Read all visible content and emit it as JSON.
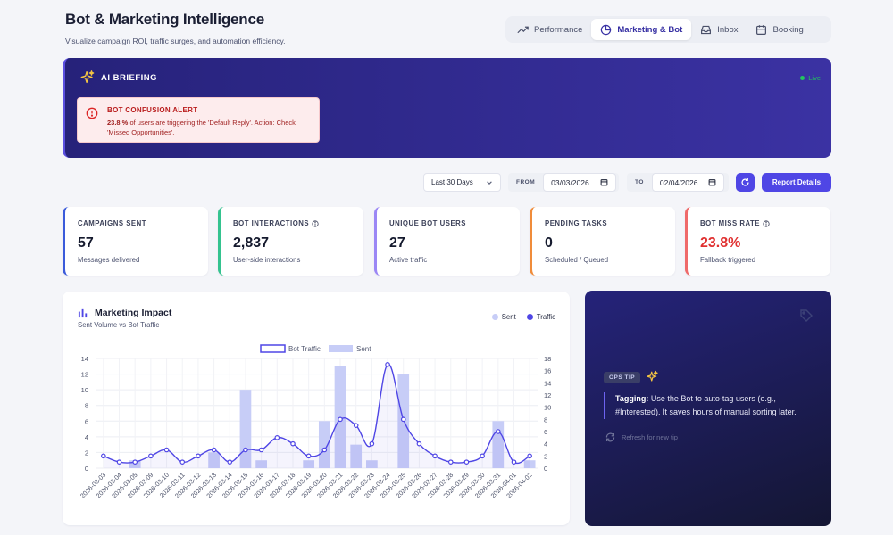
{
  "header": {
    "title": "Bot & Marketing Intelligence",
    "subtitle": "Visualize campaign ROI, traffic surges, and automation efficiency."
  },
  "tabs": [
    {
      "label": "Performance",
      "icon": "trend-icon",
      "active": false
    },
    {
      "label": "Marketing & Bot",
      "icon": "pie-icon",
      "active": true
    },
    {
      "label": "Inbox",
      "icon": "inbox-icon",
      "active": false
    },
    {
      "label": "Booking",
      "icon": "calendar-icon",
      "active": false
    }
  ],
  "briefing": {
    "title": "AI BRIEFING",
    "live": "Live",
    "alert_title": "BOT CONFUSION ALERT",
    "alert_percent": "23.8 %",
    "alert_body": " of users are triggering the 'Default Reply'. Action: Check 'Missed Opportunities'."
  },
  "filters": {
    "range": "Last 30 Days",
    "from_label": "FROM",
    "from_value": "03/03/2026",
    "to_label": "TO",
    "to_value": "02/04/2026",
    "report_label": "Report Details"
  },
  "kpis": [
    {
      "label": "CAMPAIGNS SENT",
      "value": "57",
      "sub": "Messages delivered",
      "color": "#3b5bdb",
      "info": false,
      "value_color": "#151a2e"
    },
    {
      "label": "BOT INTERACTIONS",
      "value": "2,837",
      "sub": "User-side interactions",
      "color": "#34c38f",
      "info": true,
      "value_color": "#151a2e"
    },
    {
      "label": "UNIQUE BOT USERS",
      "value": "27",
      "sub": "Active traffic",
      "color": "#9b87f5",
      "info": false,
      "value_color": "#151a2e"
    },
    {
      "label": "PENDING TASKS",
      "value": "0",
      "sub": "Scheduled / Queued",
      "color": "#f08c3a",
      "info": false,
      "value_color": "#151a2e"
    },
    {
      "label": "BOT MISS RATE",
      "value": "23.8%",
      "sub": "Fallback triggered",
      "color": "#ef6a6a",
      "info": true,
      "value_color": "#e03131"
    }
  ],
  "chart_card": {
    "title": "Marketing Impact",
    "subtitle": "Sent Volume vs Bot Traffic",
    "legend_sent": "Sent",
    "legend_traffic": "Traffic"
  },
  "chart_data": {
    "type": "bar",
    "legend": [
      "Bot Traffic",
      "Sent"
    ],
    "categories": [
      "2026-03-03",
      "2026-03-04",
      "2026-03-05",
      "2026-03-09",
      "2026-03-10",
      "2026-03-11",
      "2026-03-12",
      "2026-03-13",
      "2026-03-14",
      "2026-03-15",
      "2026-03-16",
      "2026-03-17",
      "2026-03-18",
      "2026-03-19",
      "2026-03-20",
      "2026-03-21",
      "2026-03-22",
      "2026-03-23",
      "2026-03-24",
      "2026-03-25",
      "2026-03-26",
      "2026-03-27",
      "2026-03-28",
      "2026-03-29",
      "2026-03-30",
      "2026-03-31",
      "2026-04-01",
      "2026-04-02"
    ],
    "series": [
      {
        "name": "Sent",
        "type": "bar",
        "axis": "left",
        "values": [
          0,
          0,
          1,
          0,
          0,
          0,
          0,
          2,
          0,
          10,
          1,
          0,
          0,
          1,
          6,
          13,
          3,
          1,
          0,
          12,
          0,
          0,
          0,
          0,
          0,
          6,
          0,
          1
        ]
      },
      {
        "name": "Bot Traffic",
        "type": "line",
        "axis": "right",
        "values": [
          2,
          1,
          1,
          2,
          3,
          1,
          2,
          3,
          1,
          3,
          3,
          5,
          4,
          2,
          3,
          8,
          7,
          4,
          17,
          8,
          4,
          2,
          1,
          1,
          2,
          6,
          1,
          2
        ]
      }
    ],
    "y_left": {
      "min": 0,
      "max": 14,
      "ticks": [
        0,
        2,
        4,
        6,
        8,
        10,
        12,
        14
      ]
    },
    "y_right": {
      "min": 0,
      "max": 18,
      "ticks": [
        0,
        2,
        4,
        6,
        8,
        10,
        12,
        14,
        16,
        18
      ]
    },
    "colors": {
      "bar": "#c7cdf7",
      "line": "#4f46e5"
    }
  },
  "tip": {
    "badge": "OPS TIP",
    "bold": "Tagging:",
    "text": " Use the Bot to auto-tag users (e.g., #Interested). It saves hours of manual sorting later.",
    "refresh": "Refresh for new tip"
  }
}
